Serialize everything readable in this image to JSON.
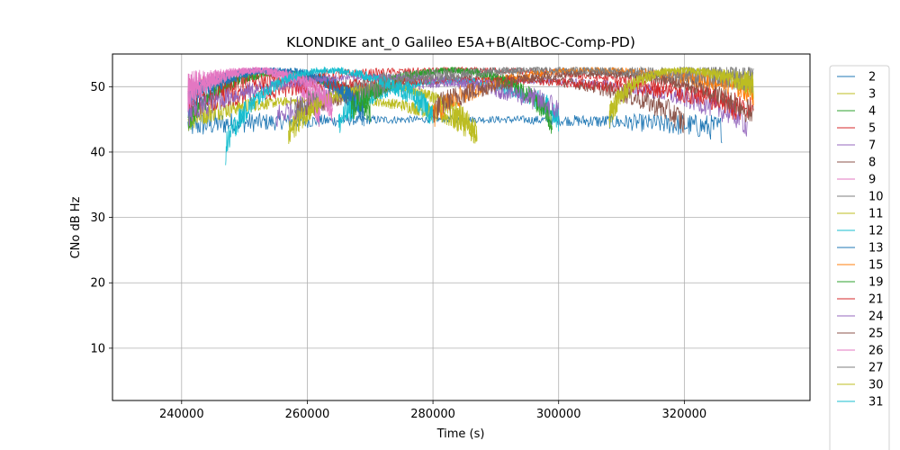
{
  "chart_data": {
    "type": "line",
    "title": "KLONDIKE ant_0 Galileo E5A+B(AltBOC-Comp-PD)",
    "xlabel": "Time (s)",
    "ylabel": "CNo dB Hz",
    "xlim": [
      229000,
      340000
    ],
    "ylim": [
      2,
      55
    ],
    "xticks": [
      240000,
      260000,
      280000,
      300000,
      320000
    ],
    "yticks": [
      10,
      20,
      30,
      40,
      50
    ],
    "grid": true,
    "legend": "right, outside plot (partially cut off at bottom)",
    "series": [
      {
        "name": "2",
        "color": "#1f77b4",
        "passes": [
          [
            241000,
            326000,
            44,
            45,
            43.5
          ]
        ]
      },
      {
        "name": "3",
        "color": "#bcbd22",
        "passes": [
          [
            241000,
            287000,
            45,
            48,
            42.5
          ]
        ]
      },
      {
        "name": "4",
        "color": "#2ca02c",
        "passes": [
          [
            241000,
            270000,
            44,
            52,
            46
          ]
        ]
      },
      {
        "name": "5",
        "color": "#d62728",
        "passes": [
          [
            241000,
            330000,
            49,
            52.5,
            45
          ]
        ]
      },
      {
        "name": "7",
        "color": "#9467bd",
        "passes": [
          [
            255000,
            330000,
            45,
            51,
            44
          ]
        ]
      },
      {
        "name": "8",
        "color": "#8c564b",
        "passes": [
          [
            258000,
            320000,
            45,
            51.5,
            44
          ]
        ]
      },
      {
        "name": "9",
        "color": "#e377c2",
        "passes": [
          [
            241000,
            262000,
            50,
            52.5,
            45
          ]
        ]
      },
      {
        "name": "10",
        "color": "#7f7f7f",
        "passes": [
          [
            258000,
            331000,
            46,
            52.5,
            51
          ]
        ]
      },
      {
        "name": "11",
        "color": "#bcbd22",
        "passes": [
          [
            257000,
            287000,
            42,
            50,
            42
          ]
        ]
      },
      {
        "name": "12",
        "color": "#17becf",
        "passes": [
          [
            265000,
            300000,
            44,
            51,
            45
          ]
        ]
      },
      {
        "name": "13",
        "color": "#1f77b4",
        "passes": [
          [
            241000,
            269000,
            47,
            52.5,
            45
          ]
        ]
      },
      {
        "name": "15",
        "color": "#ff7f0e",
        "passes": [
          [
            280000,
            331000,
            45,
            52.5,
            49
          ]
        ]
      },
      {
        "name": "19",
        "color": "#2ca02c",
        "passes": [
          [
            267000,
            299000,
            46,
            52.5,
            44
          ]
        ]
      },
      {
        "name": "21",
        "color": "#d62728",
        "passes": [
          [
            241000,
            331000,
            47,
            51,
            46
          ]
        ]
      },
      {
        "name": "24",
        "color": "#9467bd",
        "passes": [
          [
            241000,
            300000,
            45,
            51.5,
            46
          ]
        ]
      },
      {
        "name": "25",
        "color": "#8c564b",
        "passes": [
          [
            280000,
            331000,
            46,
            52,
            45
          ]
        ]
      },
      {
        "name": "26",
        "color": "#e377c2",
        "passes": [
          [
            241000,
            264000,
            48,
            52.5,
            46
          ]
        ]
      },
      {
        "name": "27",
        "color": "#7f7f7f",
        "passes": [
          [
            268000,
            331000,
            49,
            52.5,
            51
          ]
        ]
      },
      {
        "name": "30",
        "color": "#bcbd22",
        "passes": [
          [
            308000,
            331000,
            45,
            52.5,
            50
          ]
        ]
      },
      {
        "name": "31",
        "color": "#17becf",
        "passes": [
          [
            247000,
            280000,
            40,
            52.5,
            45
          ]
        ]
      }
    ]
  }
}
